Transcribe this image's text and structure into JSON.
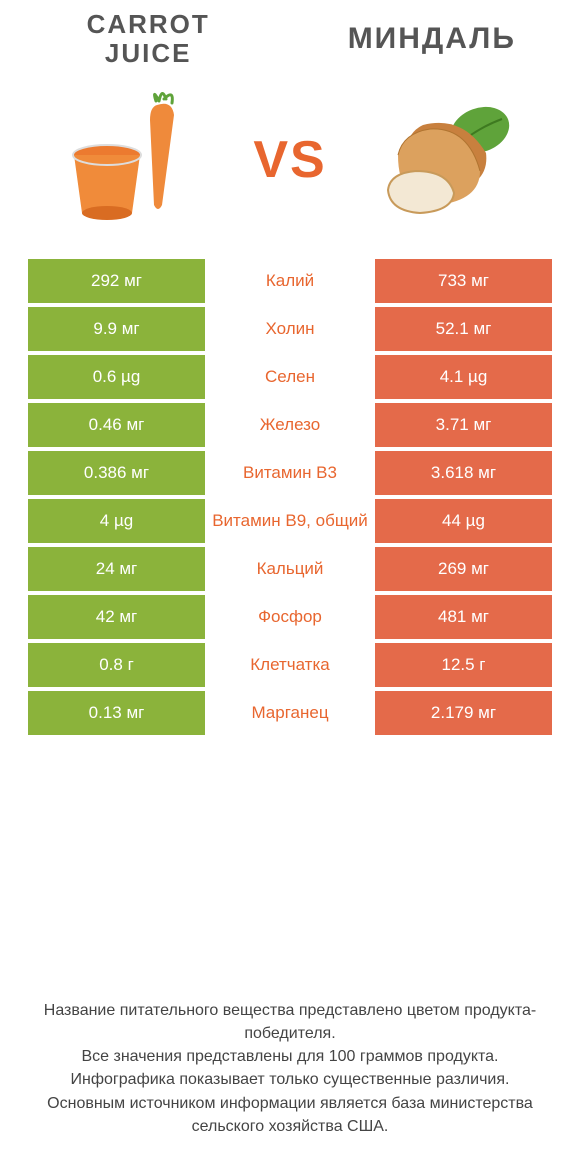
{
  "colors": {
    "left_col": "#8bb33b",
    "right_col": "#e46a4a",
    "vs": "#e8662f",
    "title": "#555555",
    "footer": "#444444",
    "mid_text_default": "#e8662f"
  },
  "header": {
    "left_title_line1": "CARROT",
    "left_title_line2": "JUICE",
    "right_title": "МИНДАЛЬ",
    "vs_label": "VS"
  },
  "table": {
    "rows": [
      {
        "left": "292 мг",
        "mid": "Калий",
        "right": "733 мг",
        "mid_color": "#e8662f"
      },
      {
        "left": "9.9 мг",
        "mid": "Холин",
        "right": "52.1 мг",
        "mid_color": "#e8662f"
      },
      {
        "left": "0.6 µg",
        "mid": "Селен",
        "right": "4.1 µg",
        "mid_color": "#e8662f"
      },
      {
        "left": "0.46 мг",
        "mid": "Железо",
        "right": "3.71 мг",
        "mid_color": "#e8662f"
      },
      {
        "left": "0.386 мг",
        "mid": "Витамин B3",
        "right": "3.618 мг",
        "mid_color": "#e8662f"
      },
      {
        "left": "4 µg",
        "mid": "Витамин B9, общий",
        "right": "44 µg",
        "mid_color": "#e8662f"
      },
      {
        "left": "24 мг",
        "mid": "Кальций",
        "right": "269 мг",
        "mid_color": "#e8662f"
      },
      {
        "left": "42 мг",
        "mid": "Фосфор",
        "right": "481 мг",
        "mid_color": "#e8662f"
      },
      {
        "left": "0.8 г",
        "mid": "Клетчатка",
        "right": "12.5 г",
        "mid_color": "#e8662f"
      },
      {
        "left": "0.13 мг",
        "mid": "Марганец",
        "right": "2.179 мг",
        "mid_color": "#e8662f"
      }
    ]
  },
  "footer": {
    "line1": "Название питательного вещества представлено цветом продукта-победителя.",
    "line2": "Все значения представлены для 100 граммов продукта.",
    "line3": "Инфографика показывает только существенные различия.",
    "line4": "Основным источником информации является база министерства сельского хозяйства США."
  }
}
